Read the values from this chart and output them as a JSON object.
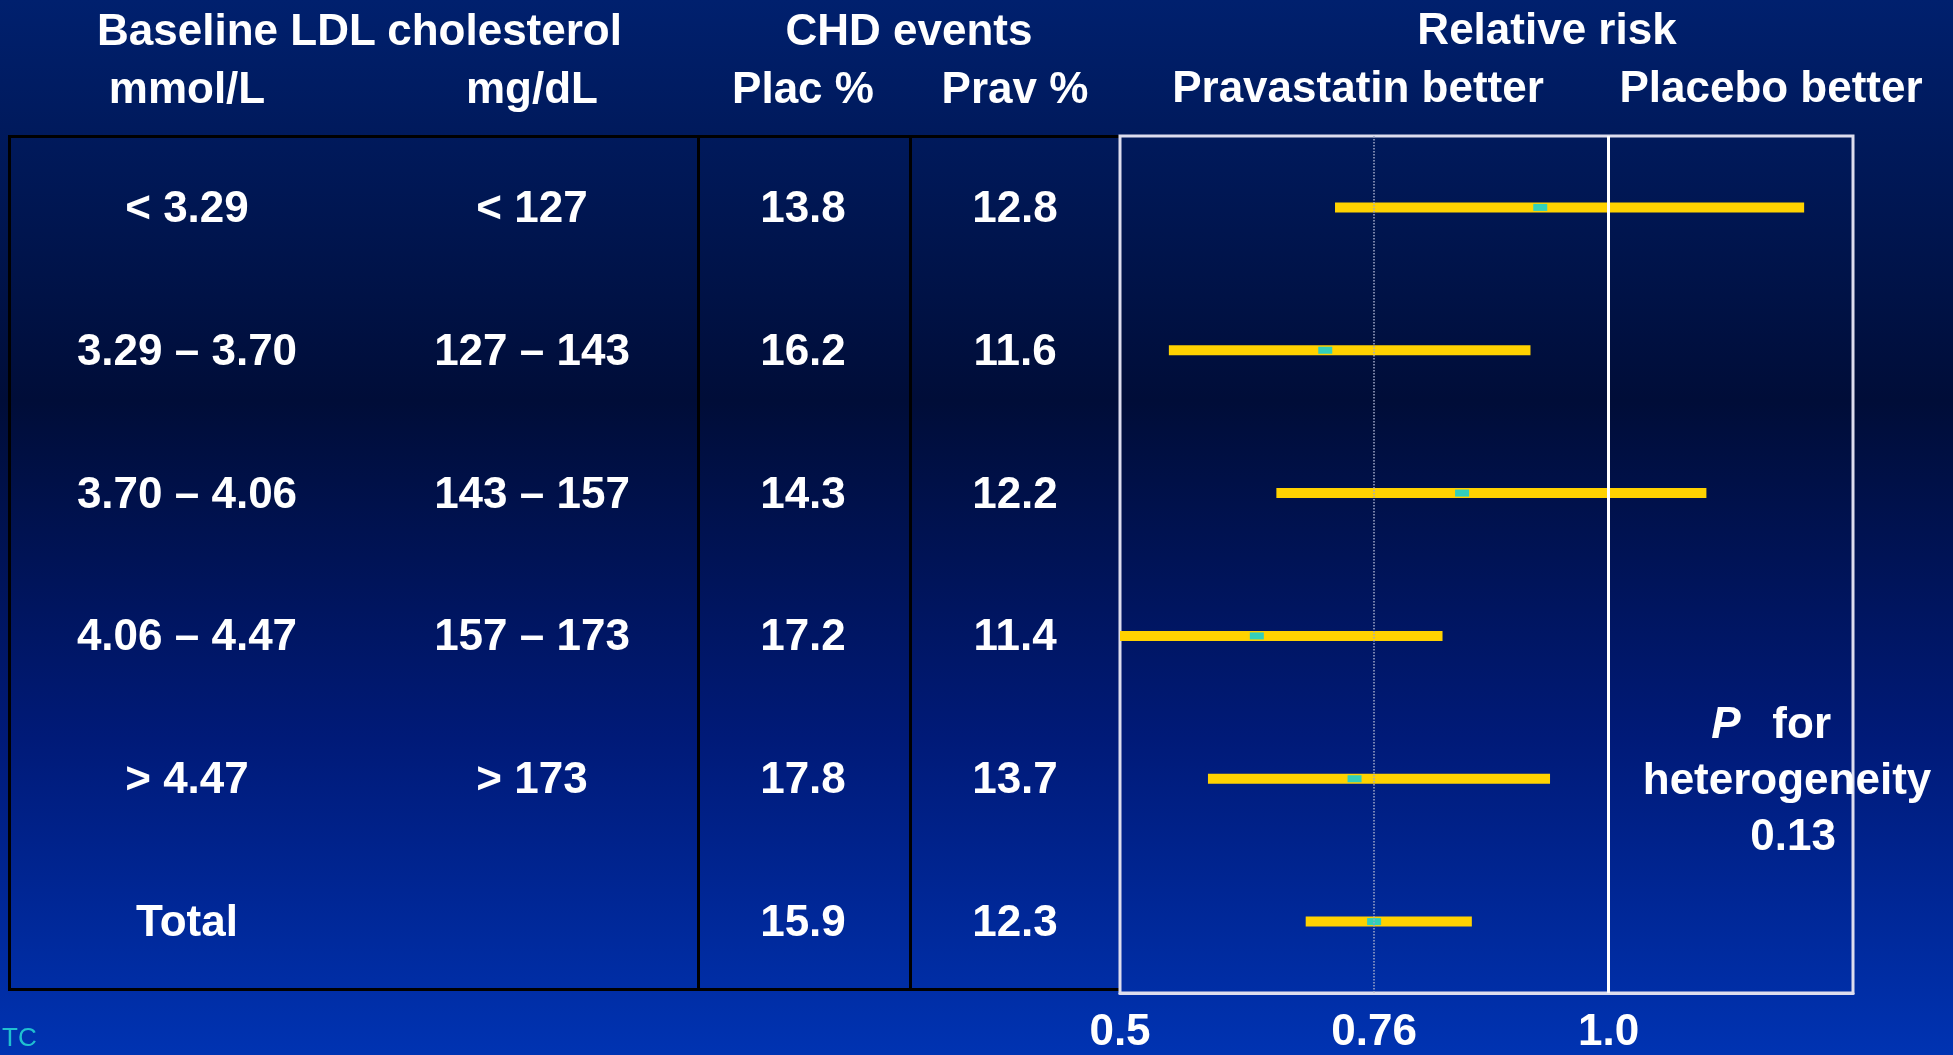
{
  "chart_data": [
    {
      "type": "other",
      "categories": [
        "mmol/L",
        "mg/dL",
        "Plac %",
        "Prav %"
      ],
      "annotations": [
        "Baseline LDL cholesterol",
        "CHD events",
        "TC"
      ],
      "cell_labels": [
        [
          "< 3.29",
          "< 127",
          "13.8",
          "12.8"
        ],
        [
          "3.29 – 3.70",
          "127 – 143",
          "16.2",
          "11.6"
        ],
        [
          "3.70 – 4.06",
          "143 – 157",
          "14.3",
          "12.2"
        ],
        [
          "4.06 – 4.47",
          "157 – 173",
          "17.2",
          "11.4"
        ],
        [
          "> 4.47",
          "> 173",
          "17.8",
          "13.7"
        ],
        [
          "Total",
          null,
          "15.9",
          "12.3"
        ]
      ]
    },
    {
      "type": "scatter",
      "title": "Relative risk",
      "orientation": "horizontal",
      "tick_labels": "x",
      "categories": [
        null,
        null,
        null,
        null,
        null,
        null
      ],
      "values": [
        0.93,
        0.71,
        0.85,
        0.64,
        0.74,
        0.76
      ],
      "color": "#00d0e8",
      "marker": "square",
      "errors": [
        [
          0.72,
          1.2
        ],
        [
          0.55,
          0.92
        ],
        [
          0.66,
          1.1
        ],
        [
          0.5,
          0.83
        ],
        [
          0.59,
          0.94
        ],
        [
          0.69,
          0.86
        ]
      ],
      "xlim": [
        0.5,
        1.25
      ],
      "xticks": [
        0.5,
        0.76,
        {
          "value": 1,
          "label": "1.0"
        }
      ],
      "ref_lines": [
        {
          "axis": "x",
          "value": 0.76,
          "color": "#a0a8c8",
          "line_style": "dotted"
        },
        {
          "axis": "x",
          "value": 1,
          "color": "#ffffff",
          "line_style": "solid"
        }
      ],
      "annotations": [
        "Pravastatin better",
        "Placebo better",
        "P for heterogeneity 0.13"
      ]
    }
  ]
}
